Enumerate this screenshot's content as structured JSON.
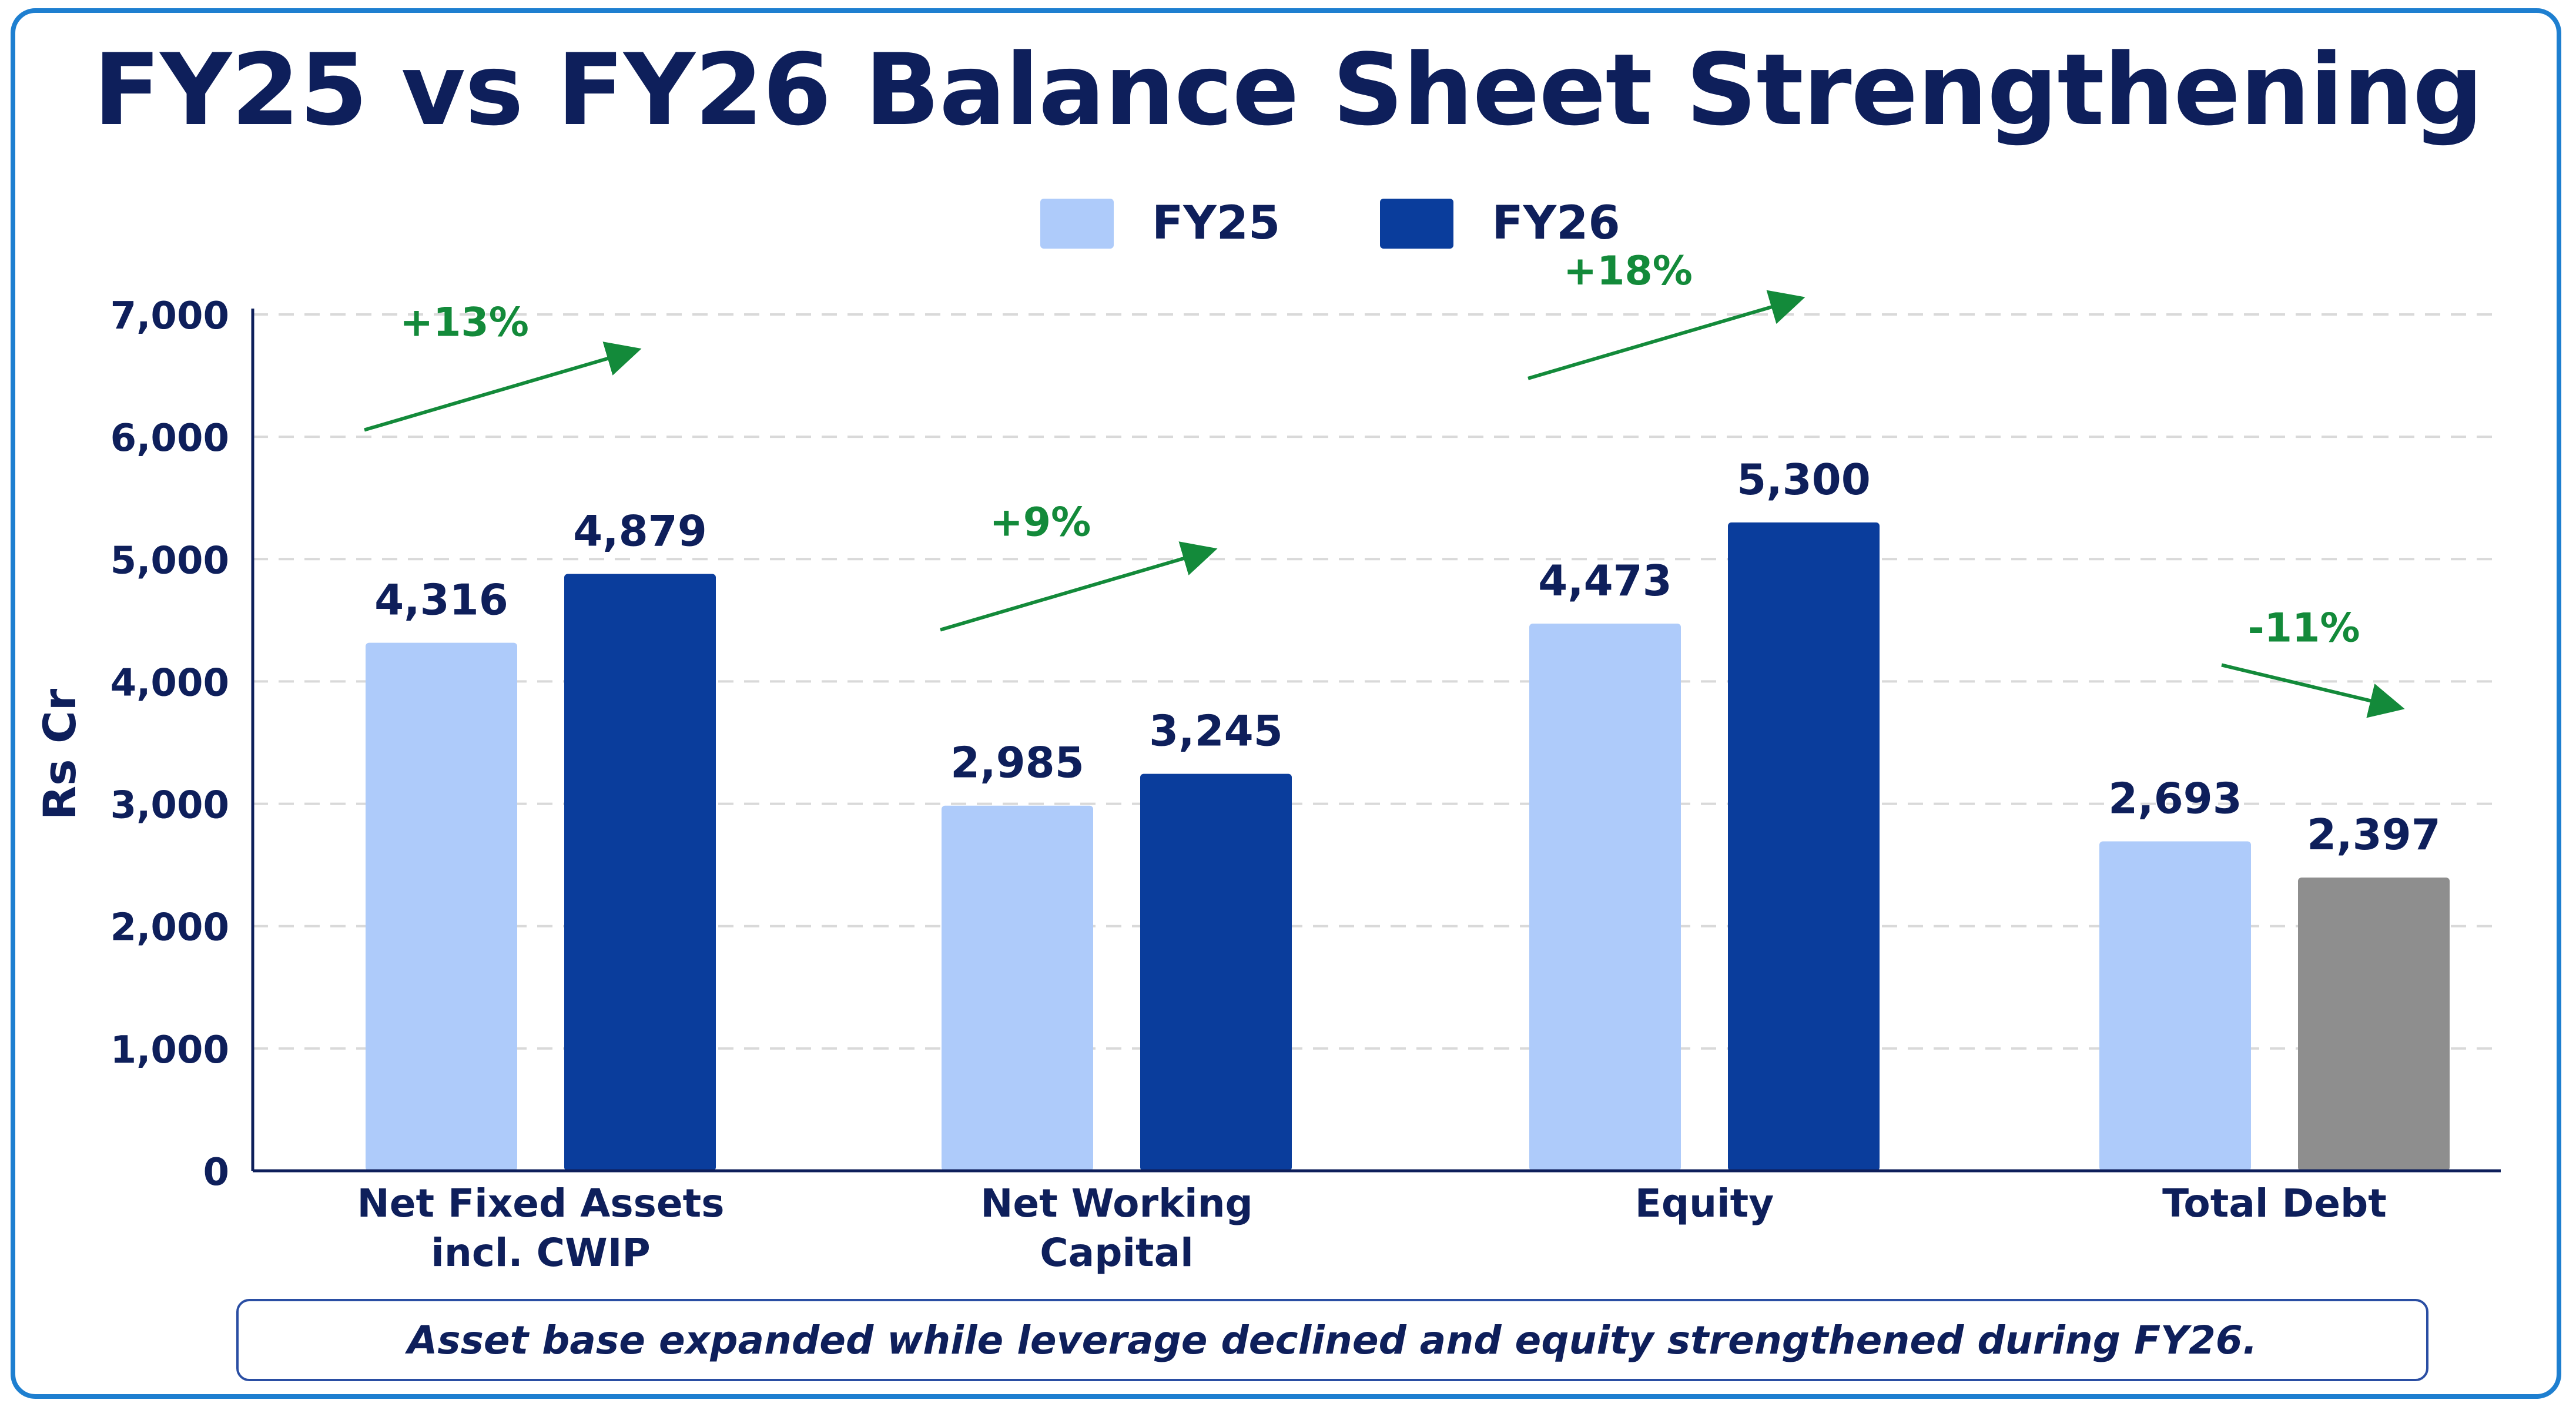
{
  "colors": {
    "frame": "#1e7fd0",
    "title": "#0e1f5b",
    "fy25": "#aecbfa",
    "fy26": "#0a3d9c",
    "fy26_total_debt": "#8e8e8e",
    "growth": "#138a3a",
    "grid": "#d9d9d9"
  },
  "chart_data": {
    "type": "bar",
    "title": "FY25 vs FY26 Balance Sheet Strengthening",
    "xlabel": "",
    "ylabel": "Rs Cr",
    "ylim": [
      0,
      7000
    ],
    "yticks": [
      0,
      1000,
      2000,
      3000,
      4000,
      5000,
      6000,
      7000
    ],
    "ytick_labels": [
      "0",
      "1,000",
      "2,000",
      "3,000",
      "4,000",
      "5,000",
      "6,000",
      "7,000"
    ],
    "grid": "horizontal-dashed",
    "legend_position": "top-center",
    "categories": [
      [
        "Net Fixed Assets",
        "incl. CWIP"
      ],
      [
        "Net Working",
        "Capital"
      ],
      [
        "Equity"
      ],
      [
        "Total Debt"
      ]
    ],
    "series": [
      {
        "name": "FY25",
        "values": [
          4316,
          2985,
          4473,
          2693
        ],
        "labels": [
          "4,316",
          "2,985",
          "4,473",
          "2,693"
        ]
      },
      {
        "name": "FY26",
        "values": [
          4879,
          3245,
          5300,
          2397
        ],
        "labels": [
          "4,879",
          "3,245",
          "5,300",
          "2,397"
        ]
      }
    ],
    "annotations": [
      {
        "text": "+13%",
        "direction": "up"
      },
      {
        "text": "+9%",
        "direction": "up"
      },
      {
        "text": "+18%",
        "direction": "up"
      },
      {
        "text": "-11%",
        "direction": "down"
      }
    ]
  },
  "caption": "Asset base expanded while leverage declined and equity strengthened during FY26."
}
